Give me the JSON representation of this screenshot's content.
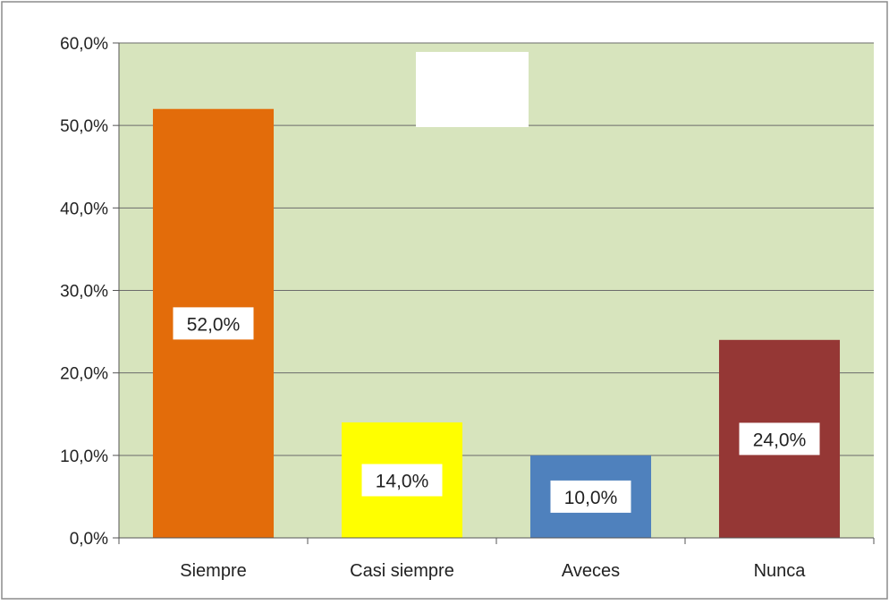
{
  "chart_data": {
    "type": "bar",
    "categories": [
      "Siempre",
      "Casi siempre",
      "Aveces",
      "Nunca"
    ],
    "values": [
      52.0,
      14.0,
      10.0,
      24.0
    ],
    "value_labels": [
      "52,0%",
      "14,0%",
      "10,0%",
      "24,0%"
    ],
    "bar_colors": [
      "#e36c0a",
      "#ffff00",
      "#4f81bd",
      "#953735"
    ],
    "ylim": [
      0,
      60
    ],
    "yticks": [
      0,
      10,
      20,
      30,
      40,
      50,
      60
    ],
    "ytick_labels": [
      "0,0%",
      "10,0%",
      "20,0%",
      "30,0%",
      "40,0%",
      "50,0%",
      "60,0%"
    ],
    "grid": true,
    "plot_background": "#d7e4bd",
    "gridline_color": "#6b6b6b",
    "title": "",
    "xlabel": "",
    "ylabel": ""
  }
}
